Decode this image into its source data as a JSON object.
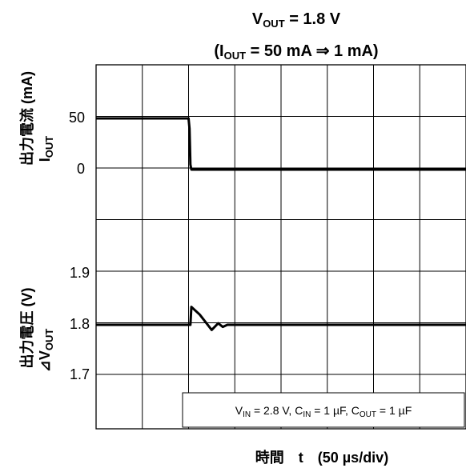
{
  "title": {
    "line1_main": "V",
    "line1_sub": "OUT",
    "line1_rest": " = 1.8 V",
    "line2_a": "(I",
    "line2_sub": "OUT",
    "line2_rest": " = 50 mA ⇒ 1 mA)"
  },
  "ylabel_top": {
    "jp": "出力電流",
    "unit": " (mA)",
    "sym_main": "I",
    "sym_sub": "OUT"
  },
  "ylabel_bottom": {
    "jp": "出力電圧",
    "unit": " (V)",
    "sym_main": "⊿V",
    "sym_sub": "OUT"
  },
  "xlabel": "時間　t　(50 µs/div)",
  "conditions": {
    "v": "V",
    "v_sub": "IN",
    "v_val": " = 2.8 V, C",
    "cin_sub": "IN",
    "cin_val": " = 1 µF, C",
    "cout_sub": "OUT",
    "cout_val": " = 1 µF"
  },
  "chart_data": {
    "type": "line",
    "x_unit": "µs",
    "x_per_div": 50,
    "x_divisions": 8,
    "grid": true,
    "panels": [
      {
        "name": "current",
        "ylabel": "出力電流 IOUT (mA)",
        "ytick_labels": [
          "50",
          "0"
        ],
        "ytick_values": [
          50,
          0
        ],
        "ylim": [
          -150,
          125
        ],
        "series": [
          {
            "x": [
              0,
              100,
              101,
              102,
              103,
              400
            ],
            "y": [
              50,
              50,
              40,
              5,
              0,
              0
            ]
          }
        ]
      },
      {
        "name": "voltage",
        "ylabel": "出力電圧 ⊿VOUT (V)",
        "ytick_labels": [
          "1.9",
          "1.8",
          "1.7"
        ],
        "ytick_values": [
          1.9,
          1.8,
          1.7
        ],
        "ylim": [
          1.6,
          2.0
        ],
        "series": [
          {
            "x": [
              0,
              100,
              102,
              103,
              112,
              125,
              132,
              137,
              142,
              150,
              400
            ],
            "y": [
              1.8,
              1.8,
              1.8,
              1.835,
              1.82,
              1.79,
              1.803,
              1.796,
              1.8,
              1.8,
              1.8
            ]
          }
        ]
      }
    ]
  }
}
